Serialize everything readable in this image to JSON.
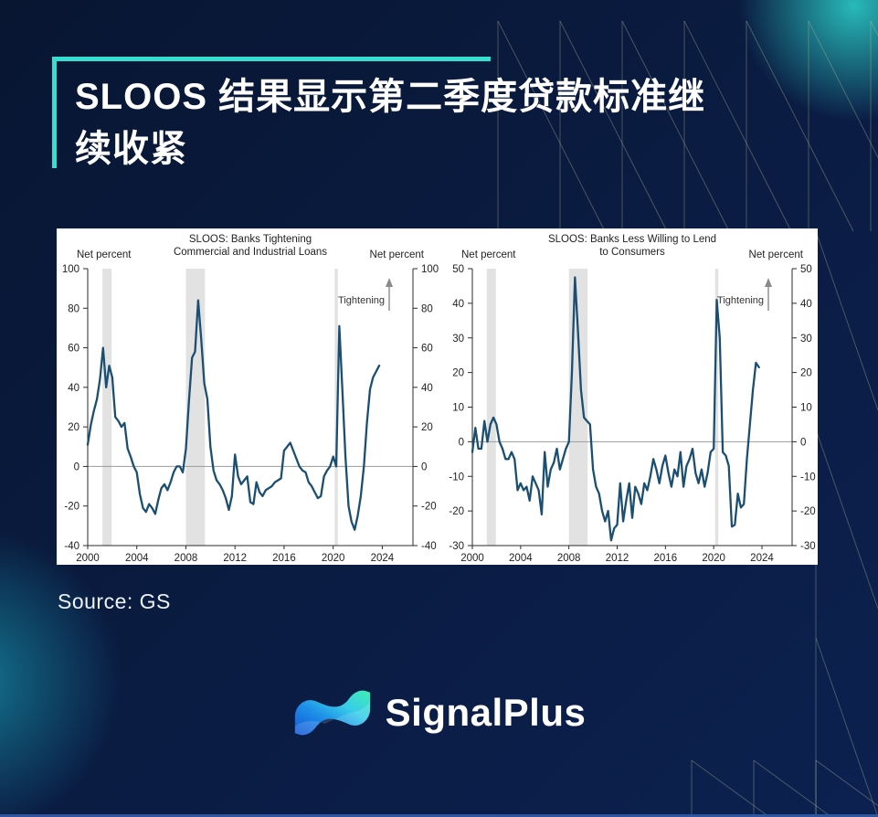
{
  "page": {
    "title_line1": "SLOOS 结果显示第二季度贷款标准继",
    "title_line2": "续收紧",
    "source": "Source: GS",
    "brand": "SignalPlus",
    "colors": {
      "accent_teal": "#36ded2",
      "chart_line": "#1b4f72",
      "recession_band": "#e2e2e2",
      "logo_gradient": [
        "#1256d8",
        "#1e8ee8",
        "#38cde9",
        "#3fe9b9"
      ],
      "background_navy": "#0a1b40"
    },
    "icons": [
      {
        "name": "signalplus-wave-logo"
      },
      {
        "name": "tightening-up-arrow"
      }
    ]
  },
  "chart_data": [
    {
      "type": "line",
      "title_lines": [
        "SLOOS: Banks Tightening",
        "Commercial and Industrial Loans"
      ],
      "ylabel_left": "Net percent",
      "ylabel_right": "Net percent",
      "annotation": "Tightening",
      "legend_position": "none",
      "grid": "zero-line-only",
      "xlim": [
        2000,
        2026.5
      ],
      "ylim": [
        -40,
        100
      ],
      "yticks": [
        100,
        80,
        60,
        40,
        20,
        0,
        -20,
        -40
      ],
      "xticks": [
        2000,
        2004,
        2008,
        2012,
        2016,
        2020,
        2024
      ],
      "recession_bands": [
        [
          2001.2,
          2001.95
        ],
        [
          2008.0,
          2009.55
        ],
        [
          2020.12,
          2020.38
        ]
      ],
      "x_start": 2000,
      "x_step": 0.25,
      "values": [
        11,
        21,
        28,
        34,
        44,
        60,
        40,
        51,
        45,
        25,
        23,
        20,
        22,
        9,
        5,
        0,
        -3,
        -14,
        -21,
        -23,
        -19,
        -21,
        -24,
        -17,
        -11,
        -9,
        -12,
        -8,
        -3,
        0,
        0,
        -3,
        9,
        33,
        55,
        58,
        84,
        64,
        42,
        34,
        10,
        -2,
        -7,
        -9,
        -12,
        -16,
        -22,
        -15,
        6,
        -5,
        -9,
        -7,
        -5,
        -18,
        -19,
        -8,
        -13,
        -15,
        -12,
        -11,
        -10,
        -8,
        -7,
        -6,
        8,
        10,
        12,
        8,
        4,
        0,
        -2,
        -3,
        -8,
        -10,
        -13,
        -16,
        -15,
        -5,
        -2,
        0,
        5,
        0,
        71,
        38,
        5,
        -20,
        -28,
        -32,
        -25,
        -15,
        0,
        22,
        39,
        45,
        48,
        51
      ]
    },
    {
      "type": "line",
      "title_lines": [
        "SLOOS: Banks Less Willing to Lend",
        "to Consumers"
      ],
      "ylabel_left": "Net percent",
      "ylabel_right": "Net percent",
      "annotation": "Tightening",
      "legend_position": "none",
      "grid": "zero-line-only",
      "xlim": [
        2000,
        2026.5
      ],
      "ylim": [
        -30,
        50
      ],
      "yticks": [
        50,
        40,
        30,
        20,
        10,
        0,
        -10,
        -20,
        -30
      ],
      "xticks": [
        2000,
        2004,
        2008,
        2012,
        2016,
        2020,
        2024
      ],
      "recession_bands": [
        [
          2001.2,
          2001.95
        ],
        [
          2008.0,
          2009.55
        ],
        [
          2020.12,
          2020.38
        ]
      ],
      "x_start": 2000,
      "x_step": 0.25,
      "values": [
        -3,
        4,
        -2,
        -2,
        6,
        0,
        5,
        7,
        5,
        0,
        -2,
        -5,
        -5,
        -3,
        -5,
        -14,
        -12,
        -14,
        -13,
        -17,
        -10,
        -12,
        -14,
        -21,
        -3,
        -13,
        -8,
        -6,
        -2,
        -8,
        -5,
        -2,
        0,
        20,
        47.5,
        32,
        15,
        7,
        6,
        5,
        -8,
        -13,
        -15,
        -20,
        -23,
        -20,
        -28.5,
        -25,
        -24,
        -12,
        -23,
        -17,
        -12,
        -22,
        -13,
        -15,
        -18,
        -12,
        -14,
        -10,
        -5,
        -8,
        -12,
        -7,
        -4,
        -9,
        -13,
        -8,
        -10,
        -3,
        -13,
        -7,
        -5,
        -2,
        -9,
        -12,
        -8,
        -13,
        -9,
        -3,
        -2,
        41,
        30,
        -3,
        -4,
        -7,
        -24.5,
        -24,
        -15,
        -19,
        -18,
        -5,
        5,
        15,
        22.8,
        21.5
      ]
    }
  ]
}
